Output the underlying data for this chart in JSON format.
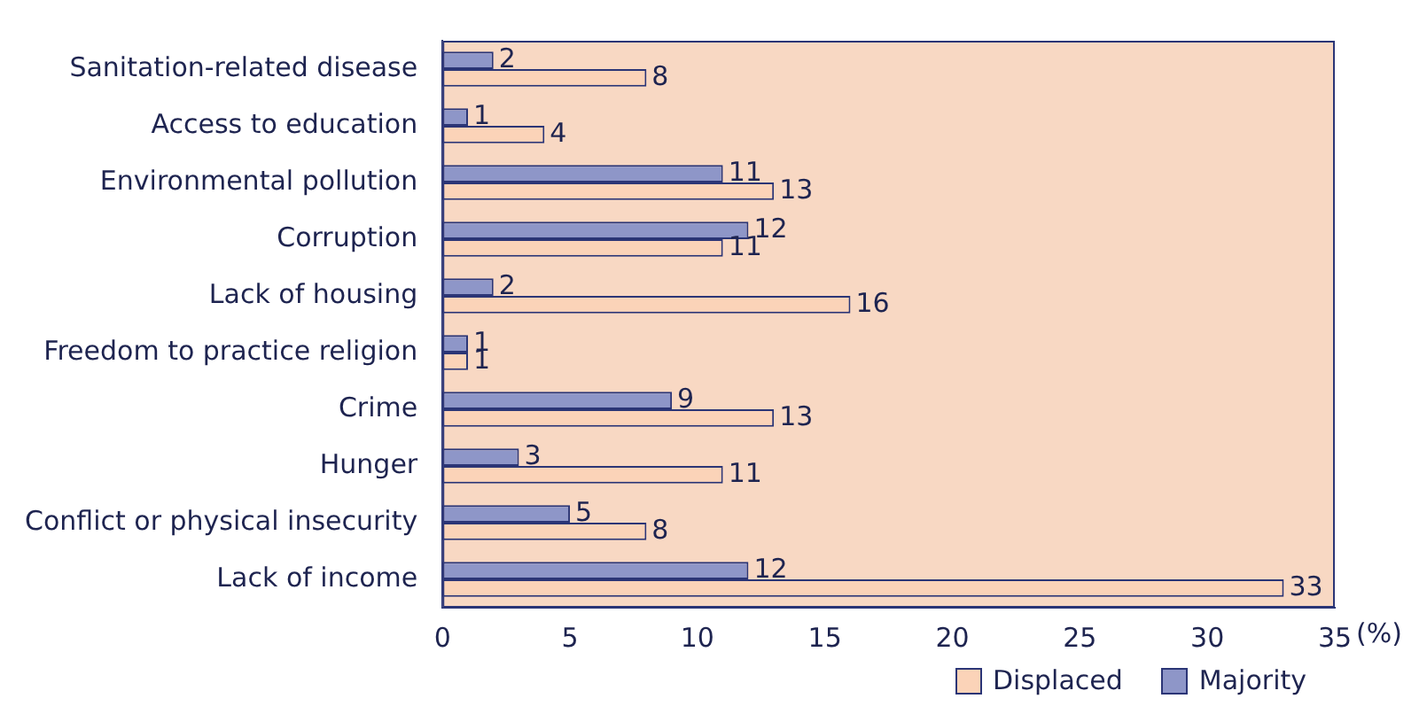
{
  "chart_data": {
    "type": "bar",
    "orientation": "horizontal",
    "xlabel": "(%)",
    "categories": [
      "Sanitation-related disease",
      "Access to education",
      "Environmental pollution",
      "Corruption",
      "Lack of housing",
      "Freedom to practice religion",
      "Crime",
      "Hunger",
      "Conflict or physical insecurity",
      "Lack of income"
    ],
    "series": [
      {
        "name": "Majority",
        "color": "#8e96c8",
        "values": [
          2,
          1,
          11,
          12,
          2,
          1,
          9,
          3,
          5,
          12
        ]
      },
      {
        "name": "Displaced",
        "color": "#fbd3b8",
        "values": [
          8,
          4,
          13,
          11,
          16,
          1,
          13,
          11,
          8,
          33
        ]
      }
    ],
    "xlim": [
      0,
      35
    ],
    "xticks": [
      0,
      5,
      10,
      15,
      20,
      25,
      30,
      35
    ],
    "grid": false,
    "legend": "bottom right",
    "data_labels": true
  }
}
